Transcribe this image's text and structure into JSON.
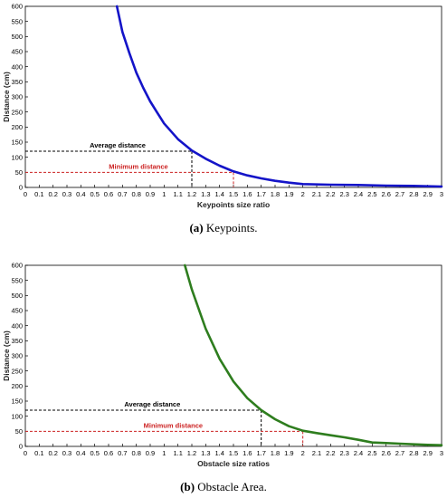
{
  "chart_data": [
    {
      "type": "line",
      "xlabel": "Keypoints size ratio",
      "ylabel": "Distance (cm)",
      "xlim": [
        0,
        3
      ],
      "ylim": [
        0,
        600
      ],
      "xticks": [
        "0",
        "0.1",
        "0.2",
        "0.3",
        "0.4",
        "0.5",
        "0.6",
        "0.7",
        "0.8",
        "0.9",
        "1",
        "1.1",
        "1.2",
        "1.3",
        "1.4",
        "1.5",
        "1.6",
        "1.7",
        "1.8",
        "1.9",
        "2",
        "2.1",
        "2.2",
        "2.3",
        "2.4",
        "2.5",
        "2.6",
        "2.7",
        "2.8",
        "2.9",
        "3"
      ],
      "yticks": [
        "0",
        "50",
        "100",
        "150",
        "200",
        "250",
        "300",
        "350",
        "400",
        "450",
        "500",
        "550",
        "600"
      ],
      "grid": false,
      "series": [
        {
          "color": "#1414c8",
          "x": [
            0.66,
            0.7,
            0.75,
            0.8,
            0.85,
            0.9,
            0.95,
            1.0,
            1.1,
            1.2,
            1.3,
            1.4,
            1.5,
            1.6,
            1.7,
            1.8,
            1.9,
            2.0,
            2.2,
            2.4,
            2.6,
            2.8,
            3.0
          ],
          "y": [
            600,
            515,
            445,
            380,
            330,
            285,
            248,
            212,
            160,
            122,
            95,
            72,
            53,
            40,
            30,
            22,
            16,
            11,
            9,
            8,
            6,
            5,
            3
          ]
        }
      ],
      "annotations": [
        {
          "label": "Average distance",
          "x": 1.2,
          "y": 120,
          "color": "#000000"
        },
        {
          "label": "Minimum distance",
          "x": 1.5,
          "y": 50,
          "color": "#cc2222"
        }
      ]
    },
    {
      "type": "line",
      "xlabel": "Obstacle size ratios",
      "ylabel": "Distance (cm)",
      "xlim": [
        0,
        3
      ],
      "ylim": [
        0,
        600
      ],
      "xticks": [
        "0",
        "0.1",
        "0.2",
        "0.3",
        "0.4",
        "0.5",
        "0.6",
        "0.7",
        "0.8",
        "0.9",
        "1",
        "1.1",
        "1.2",
        "1.3",
        "1.4",
        "1.5",
        "1.6",
        "1.7",
        "1.8",
        "1.9",
        "2",
        "2.1",
        "2.2",
        "2.3",
        "2.4",
        "2.5",
        "2.6",
        "2.7",
        "2.8",
        "2.9",
        "3"
      ],
      "yticks": [
        "0",
        "50",
        "100",
        "150",
        "200",
        "250",
        "300",
        "350",
        "400",
        "450",
        "500",
        "550",
        "600"
      ],
      "grid": false,
      "series": [
        {
          "color": "#2e7d1e",
          "x": [
            1.15,
            1.2,
            1.3,
            1.4,
            1.5,
            1.6,
            1.7,
            1.8,
            1.9,
            2.0,
            2.1,
            2.2,
            2.3,
            2.4,
            2.5,
            2.6,
            2.7,
            2.8,
            2.9,
            3.0
          ],
          "y": [
            600,
            520,
            390,
            290,
            215,
            160,
            120,
            90,
            67,
            52,
            44,
            37,
            30,
            22,
            13,
            11,
            9,
            7,
            5,
            4
          ]
        }
      ],
      "annotations": [
        {
          "label": "Average distance",
          "x": 1.7,
          "y": 120,
          "color": "#000000"
        },
        {
          "label": "Minimum distance",
          "x": 2.0,
          "y": 50,
          "color": "#cc2222"
        }
      ]
    }
  ],
  "captions": {
    "a_tag": "(a)",
    "a_text": "Keypoints.",
    "b_tag": "(b)",
    "b_text": "Obstacle Area."
  }
}
